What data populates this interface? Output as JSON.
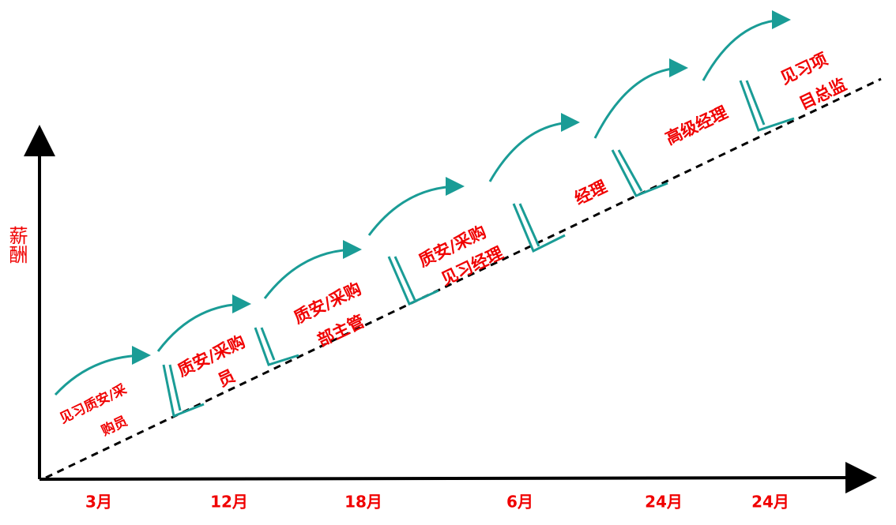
{
  "y_axis_label": "薪酬",
  "stages": [
    {
      "lines": [
        "见习质安/采",
        "购员"
      ],
      "duration": "3月"
    },
    {
      "lines": [
        "质安/采购",
        "员"
      ],
      "duration": "12月"
    },
    {
      "lines": [
        "质安/采购",
        "部主管"
      ],
      "duration": "18月"
    },
    {
      "lines": [
        "质安/采购",
        "见习经理"
      ],
      "duration": "6月"
    },
    {
      "lines": [
        "经理"
      ],
      "duration": "24月"
    },
    {
      "lines": [
        "高级经理"
      ],
      "duration": "24月"
    },
    {
      "lines": [
        "见习项",
        "目总监"
      ]
    }
  ]
}
